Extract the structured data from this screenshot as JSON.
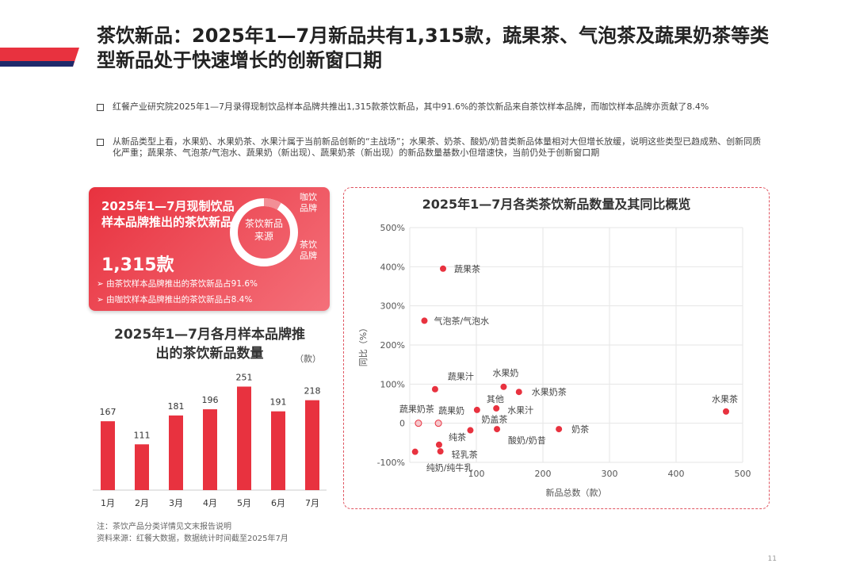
{
  "title": "茶饮新品：2025年1—7月新品共有1,315款，蔬果茶、气泡茶及蔬果奶茶等类型新品处于快速增长的创新窗口期",
  "bullets": [
    "红餐产业研究院2025年1—7月录得现制饮品样本品牌共推出1,315款茶饮新品，其中91.6%的茶饮新品来自茶饮样本品牌，而咖饮样本品牌亦贡献了8.4%",
    "从新品类型上看，水果奶、水果奶茶、水果汁属于当前新品创新的“主战场”；水果茶、奶茶、酸奶/奶昔类新品体量相对大但增长放缓，说明这些类型已趋成熟、创新同质化严重；蔬果茶、气泡茶/气泡水、蔬果奶（新出现）、蔬果奶茶（新出现）的新品数量基数小但增速快，当前仍处于创新窗口期"
  ],
  "card": {
    "heading": "2025年1—7月现制饮品样本品牌推出的茶饮新品",
    "total": "1,315款",
    "donut_center": "茶饮新品来源",
    "label_coffee": "咖饮品牌",
    "label_tea": "茶饮品牌",
    "share_tea": 91.6,
    "share_coffee": 8.4,
    "items": [
      "由茶饮样本品牌推出的茶饮新品占91.6%",
      "由咖饮样本品牌推出的茶饮新品占8.4%"
    ]
  },
  "colors": {
    "accent": "#e8323f",
    "navy": "#1f2a6b"
  },
  "chart_data": [
    {
      "type": "bar",
      "title": "2025年1—7月各月样本品牌推出的茶饮新品数量",
      "unit": "（款）",
      "categories": [
        "1月",
        "2月",
        "3月",
        "4月",
        "5月",
        "6月",
        "7月"
      ],
      "values": [
        167,
        111,
        181,
        196,
        251,
        191,
        218
      ]
    },
    {
      "type": "scatter",
      "title": "2025年1—7月各类茶饮新品数量及其同比概览",
      "xlabel": "新品总数（款）",
      "ylabel": "同比（%）",
      "xlim": [
        0,
        500
      ],
      "ylim": [
        -100,
        500
      ],
      "xticks": [
        "100",
        "200",
        "300",
        "400",
        "500"
      ],
      "yticks": [
        "-100%",
        "0",
        "100%",
        "200%",
        "300%",
        "400%",
        "500%"
      ],
      "grid": true,
      "points": [
        {
          "label": "蔬果茶",
          "x": 50,
          "y": 395
        },
        {
          "label": "气泡茶/气泡水",
          "x": 22,
          "y": 262
        },
        {
          "label": "蔬果汁",
          "x": 38,
          "y": 87
        },
        {
          "label": "水果奶",
          "x": 141,
          "y": 93
        },
        {
          "label": "水果奶茶",
          "x": 164,
          "y": 80
        },
        {
          "label": "其他",
          "x": 101,
          "y": 34
        },
        {
          "label": "水果汁",
          "x": 130,
          "y": 38
        },
        {
          "label": "蔬果奶茶",
          "x": 13,
          "y": 0,
          "new": true
        },
        {
          "label": "蔬果奶",
          "x": 43,
          "y": 0,
          "new": true
        },
        {
          "label": "奶盖茶",
          "x": 91,
          "y": -18
        },
        {
          "label": "酸奶/奶昔",
          "x": 131,
          "y": -15
        },
        {
          "label": "奶茶",
          "x": 224,
          "y": -15
        },
        {
          "label": "纯茶",
          "x": 44,
          "y": -55
        },
        {
          "label": "轻乳茶",
          "x": 46,
          "y": -72
        },
        {
          "label": "纯奶/纯牛乳",
          "x": 8,
          "y": -73
        },
        {
          "label": "水果茶",
          "x": 475,
          "y": 30
        }
      ]
    }
  ],
  "notes": [
    "注：茶饮产品分类详情见文末报告说明",
    "资料来源：红餐大数据，数据统计时间截至2025年7月"
  ],
  "page": "11"
}
